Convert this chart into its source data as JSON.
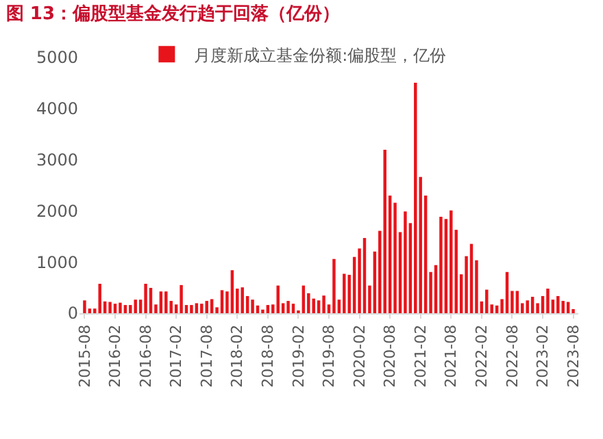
{
  "chart_data": {
    "type": "bar",
    "title": "图 13：偏股型基金发行趋于回落（亿份）",
    "categories": [
      "2015-08",
      null,
      null,
      null,
      null,
      null,
      "2016-02",
      null,
      null,
      null,
      null,
      null,
      "2016-08",
      null,
      null,
      null,
      null,
      null,
      "2017-02",
      null,
      null,
      null,
      null,
      null,
      "2017-08",
      null,
      null,
      null,
      null,
      null,
      "2018-02",
      null,
      null,
      null,
      null,
      null,
      "2018-08",
      null,
      null,
      null,
      null,
      null,
      "2019-02",
      null,
      null,
      null,
      null,
      null,
      "2019-08",
      null,
      null,
      null,
      null,
      null,
      "2020-02",
      null,
      null,
      null,
      null,
      null,
      "2020-08",
      null,
      null,
      null,
      null,
      null,
      "2021-02",
      null,
      null,
      null,
      null,
      null,
      "2021-08",
      null,
      null,
      null,
      null,
      null,
      "2022-02",
      null,
      null,
      null,
      null,
      null,
      "2022-08",
      null,
      null,
      null,
      null,
      null,
      "2023-02",
      null,
      null,
      null,
      null,
      null,
      "2023-08"
    ],
    "series": [
      {
        "name": "月度新成立基金份额:偏股型，亿份",
        "color": "#e8141b",
        "values": [
          250,
          90,
          90,
          575,
          230,
          220,
          185,
          205,
          160,
          160,
          265,
          265,
          575,
          495,
          170,
          425,
          425,
          240,
          170,
          550,
          160,
          160,
          195,
          185,
          240,
          275,
          115,
          450,
          425,
          840,
          480,
          505,
          335,
          265,
          150,
          70,
          160,
          170,
          540,
          195,
          240,
          185,
          35,
          540,
          390,
          285,
          250,
          345,
          170,
          1060,
          265,
          770,
          750,
          1100,
          1265,
          1470,
          540,
          1205,
          1610,
          3195,
          2300,
          2160,
          1585,
          1990,
          1760,
          4505,
          2665,
          2300,
          805,
          940,
          1885,
          1840,
          2010,
          1630,
          760,
          1115,
          1355,
          1035,
          230,
          460,
          170,
          150,
          275,
          805,
          435,
          435,
          195,
          250,
          320,
          195,
          335,
          480,
          265,
          335,
          240,
          220,
          80
        ]
      }
    ],
    "ylim": [
      0,
      5000
    ],
    "yticks": [
      0,
      1000,
      2000,
      3000,
      4000,
      5000
    ],
    "grid": false,
    "legend": "top left"
  }
}
